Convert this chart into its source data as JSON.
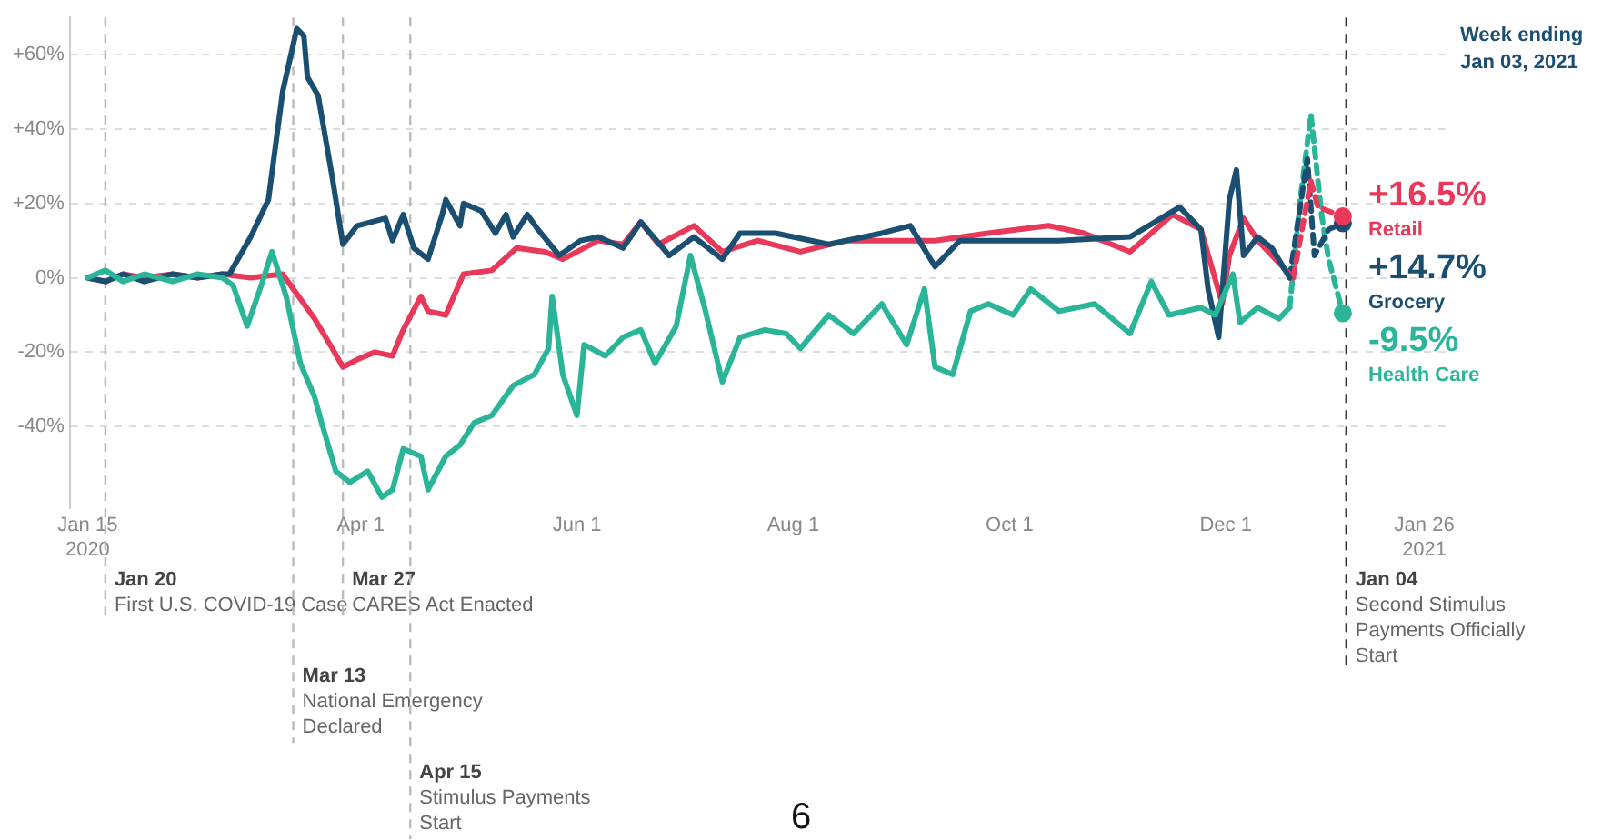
{
  "chart_data": {
    "type": "line",
    "legend_title": "Week ending Jan 03, 2021",
    "xlim": [
      "2020-01-10",
      "2021-02-01"
    ],
    "ylim": [
      -62,
      70
    ],
    "xticks": [
      {
        "value": "2020-01-15",
        "label": "Jan 15\n2020"
      },
      {
        "value": "2020-04-01",
        "label": "Apr 1"
      },
      {
        "value": "2020-06-01",
        "label": "Jun 1"
      },
      {
        "value": "2020-08-01",
        "label": "Aug 1"
      },
      {
        "value": "2020-10-01",
        "label": "Oct 1"
      },
      {
        "value": "2020-12-01",
        "label": "Dec 1"
      },
      {
        "value": "2021-01-26",
        "label": "Jan 26\n2021"
      }
    ],
    "yticks": [
      {
        "value": -40,
        "label": "-40%"
      },
      {
        "value": -20,
        "label": "-20%"
      },
      {
        "value": 0,
        "label": "0%"
      },
      {
        "value": 20,
        "label": "+20%"
      },
      {
        "value": 40,
        "label": "+40%"
      },
      {
        "value": 60,
        "label": "+60%"
      }
    ],
    "grid": "y",
    "line_style": "solid",
    "series": [
      {
        "color": "#2bb598",
        "x": [
          "2020-01-15",
          "2020-01-20",
          "2020-01-25",
          "2020-01-31",
          "2020-02-08",
          "2020-02-15",
          "2020-02-22",
          "2020-02-25",
          "2020-02-29",
          "2020-03-04",
          "2020-03-07",
          "2020-03-11",
          "2020-03-15",
          "2020-03-19",
          "2020-03-21",
          "2020-03-25",
          "2020-03-29",
          "2020-04-03",
          "2020-04-07",
          "2020-04-10",
          "2020-04-13",
          "2020-04-18",
          "2020-04-20",
          "2020-04-25",
          "2020-04-29",
          "2020-05-03",
          "2020-05-08",
          "2020-05-14",
          "2020-05-20",
          "2020-05-24",
          "2020-05-25",
          "2020-05-28",
          "2020-06-01",
          "2020-06-03",
          "2020-06-09",
          "2020-06-14",
          "2020-06-19",
          "2020-06-23",
          "2020-06-29",
          "2020-07-03",
          "2020-07-07",
          "2020-07-12",
          "2020-07-17",
          "2020-07-24",
          "2020-07-30",
          "2020-08-03",
          "2020-08-11",
          "2020-08-18",
          "2020-08-26",
          "2020-09-02",
          "2020-09-07",
          "2020-09-10",
          "2020-09-15",
          "2020-09-20",
          "2020-09-25",
          "2020-10-02",
          "2020-10-07",
          "2020-10-15",
          "2020-10-25",
          "2020-11-04",
          "2020-11-10",
          "2020-11-15",
          "2020-11-24",
          "2020-11-28",
          "2020-12-03",
          "2020-12-05",
          "2020-12-10",
          "2020-12-16",
          "2020-12-19"
        ],
        "values": [
          0,
          2,
          -1,
          1,
          -1,
          1,
          0,
          -2,
          -13,
          -2,
          7,
          -5,
          -23,
          -32,
          -39,
          -52,
          -55,
          -52,
          -59,
          -57,
          -46,
          -48,
          -57,
          -48,
          -45,
          -39,
          -37,
          -29,
          -26,
          -19,
          -5,
          -26,
          -37,
          -18,
          -21,
          -16,
          -14,
          -23,
          -13,
          6,
          -8,
          -28,
          -16,
          -14,
          -15,
          -19,
          -10,
          -15,
          -7,
          -18,
          -3,
          -24,
          -26,
          -9,
          -7,
          -10,
          -3,
          -9,
          -7,
          -15,
          -1,
          -10,
          -8,
          -10,
          1,
          -12,
          -8,
          -11,
          -8
        ]
      },
      {
        "color": "#1b4f72",
        "x": [
          "2020-01-15",
          "2020-01-20",
          "2020-01-25",
          "2020-01-31",
          "2020-02-08",
          "2020-02-15",
          "2020-02-22",
          "2020-02-24",
          "2020-03-01",
          "2020-03-06",
          "2020-03-10",
          "2020-03-14",
          "2020-03-16",
          "2020-03-17",
          "2020-03-20",
          "2020-03-24",
          "2020-03-27",
          "2020-03-31",
          "2020-04-08",
          "2020-04-10",
          "2020-04-13",
          "2020-04-16",
          "2020-04-20",
          "2020-04-24",
          "2020-04-25",
          "2020-04-29",
          "2020-04-30",
          "2020-05-05",
          "2020-05-09",
          "2020-05-12",
          "2020-05-14",
          "2020-05-18",
          "2020-05-21",
          "2020-05-27",
          "2020-06-02",
          "2020-06-07",
          "2020-06-14",
          "2020-06-19",
          "2020-06-27",
          "2020-07-04",
          "2020-07-12",
          "2020-07-17",
          "2020-07-27",
          "2020-08-11",
          "2020-08-26",
          "2020-09-03",
          "2020-09-10",
          "2020-09-17",
          "2020-10-15",
          "2020-11-04",
          "2020-11-18",
          "2020-11-24",
          "2020-11-26",
          "2020-11-29",
          "2020-12-02",
          "2020-12-04",
          "2020-12-06",
          "2020-12-10",
          "2020-12-14",
          "2020-12-19"
        ],
        "values": [
          0,
          -1,
          1,
          -1,
          1,
          0,
          1,
          1,
          11,
          21,
          50,
          67,
          65,
          54,
          49,
          27,
          9,
          14,
          16,
          10,
          17,
          8,
          5,
          17,
          21,
          14,
          20,
          18,
          12,
          17,
          11,
          17,
          13,
          6,
          10,
          11,
          8,
          15,
          6,
          11,
          5,
          12,
          12,
          9,
          12,
          14,
          3,
          10,
          10,
          11,
          19,
          13,
          -3,
          -16,
          21,
          29,
          6,
          11,
          8,
          0
        ]
      },
      {
        "color": "#e8395a",
        "x": [
          "2020-01-15",
          "2020-01-20",
          "2020-01-25",
          "2020-01-31",
          "2020-02-08",
          "2020-02-15",
          "2020-02-22",
          "2020-03-01",
          "2020-03-10",
          "2020-03-19",
          "2020-03-24",
          "2020-03-27",
          "2020-03-31",
          "2020-04-05",
          "2020-04-10",
          "2020-04-13",
          "2020-04-18",
          "2020-04-20",
          "2020-04-25",
          "2020-04-30",
          "2020-05-08",
          "2020-05-15",
          "2020-05-23",
          "2020-05-28",
          "2020-06-07",
          "2020-06-14",
          "2020-06-19",
          "2020-06-24",
          "2020-07-04",
          "2020-07-12",
          "2020-07-22",
          "2020-08-03",
          "2020-08-16",
          "2020-09-10",
          "2020-09-25",
          "2020-10-12",
          "2020-10-22",
          "2020-11-04",
          "2020-11-16",
          "2020-11-24",
          "2020-11-27",
          "2020-11-30",
          "2020-12-02",
          "2020-12-06",
          "2020-12-10",
          "2020-12-16",
          "2020-12-20"
        ],
        "values": [
          0,
          -1,
          1,
          0,
          1,
          0,
          1,
          0,
          1,
          -11,
          -19,
          -24,
          -22,
          -20,
          -21,
          -14,
          -5,
          -9,
          -10,
          1,
          2,
          8,
          7,
          5,
          10,
          9,
          15,
          9,
          14,
          7,
          10,
          7,
          10,
          10,
          12,
          14,
          12,
          7,
          17,
          13,
          3,
          -7,
          6,
          16,
          10,
          4,
          0
        ]
      },
      {
        "name": "Retail",
        "color": "#e8395a",
        "line_style": "dashed",
        "x": [
          "2020-12-20",
          "2020-12-25",
          "2020-12-27",
          "2021-01-03"
        ],
        "values": [
          0,
          26,
          19,
          16.5
        ],
        "value_labels": [
          null,
          null,
          null,
          "+16.5%"
        ]
      },
      {
        "name": "Grocery",
        "color": "#1b4f72",
        "line_style": "dashed",
        "x": [
          "2020-12-19",
          "2020-12-24",
          "2020-12-26",
          "2020-12-30",
          "2021-01-03"
        ],
        "values": [
          0,
          32,
          6,
          13,
          14.7
        ],
        "value_labels": [
          null,
          null,
          null,
          null,
          "+14.7%"
        ]
      },
      {
        "name": "Health Care",
        "color": "#2bb598",
        "line_style": "dashed",
        "x": [
          "2020-12-19",
          "2020-12-22",
          "2020-12-25",
          "2020-12-28",
          "2020-12-30",
          "2021-01-03"
        ],
        "values": [
          -8,
          21,
          44,
          17,
          5,
          -9.5
        ],
        "value_labels": [
          null,
          null,
          null,
          null,
          null,
          "-9.5%"
        ]
      }
    ],
    "ref_lines": [
      {
        "axis": "x",
        "value": "2020-01-20",
        "label": "Jan 20\nFirst U.S. COVID-19 Case"
      },
      {
        "axis": "x",
        "value": "2020-03-13",
        "label": "Mar 13\nNational Emergency\nDeclared"
      },
      {
        "axis": "x",
        "value": "2020-03-27",
        "label": "Mar 27\nCARES Act Enacted"
      },
      {
        "axis": "x",
        "value": "2020-04-15",
        "label": "Apr 15\nStimulus Payments\nStart"
      },
      {
        "axis": "x",
        "value": "2021-01-04",
        "label": "Jan 04\nSecond Stimulus\nPayments Officially\nStart",
        "color": "#333333"
      }
    ],
    "annotations": [
      "6"
    ]
  }
}
